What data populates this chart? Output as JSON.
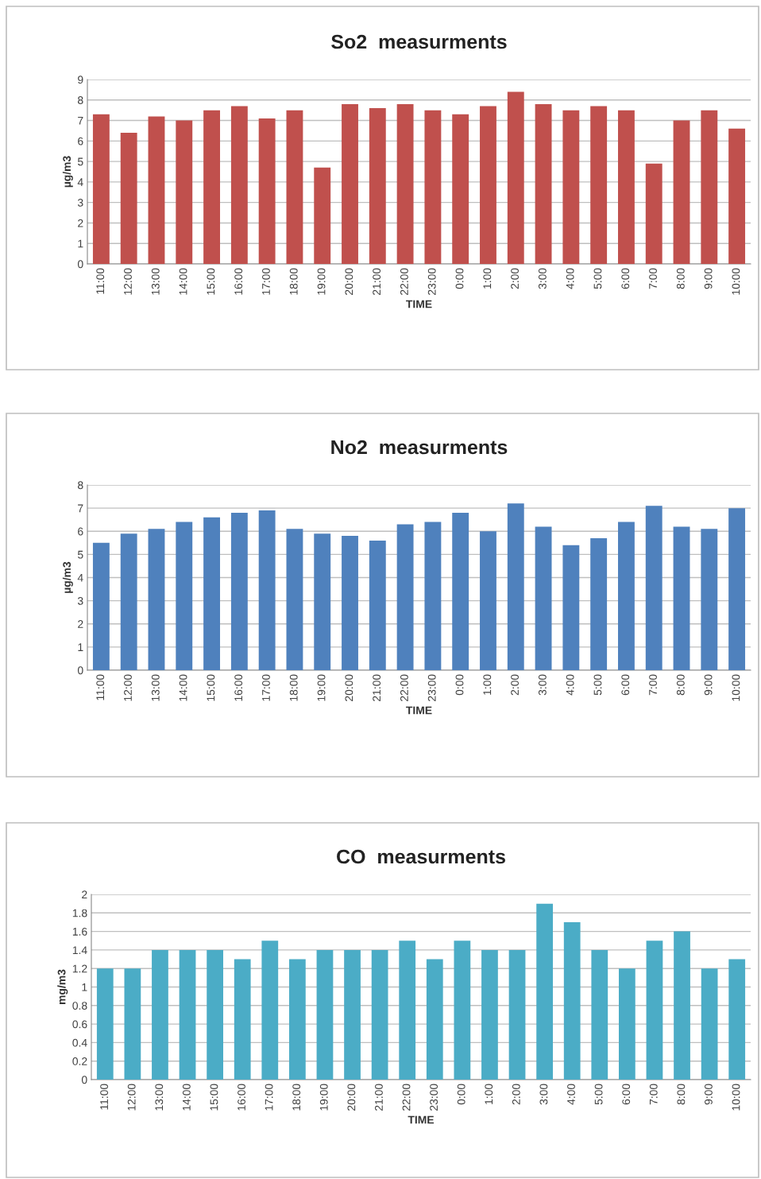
{
  "chart_data": [
    {
      "type": "bar",
      "title": "So2  measurments",
      "xlabel": "TIME",
      "ylabel": "µg/m3",
      "categories": [
        "11:00",
        "12:00",
        "13:00",
        "14:00",
        "15:00",
        "16:00",
        "17:00",
        "18:00",
        "19:00",
        "20:00",
        "21:00",
        "22:00",
        "23:00",
        "0:00",
        "1:00",
        "2:00",
        "3:00",
        "4:00",
        "5:00",
        "6:00",
        "7:00",
        "8:00",
        "9:00",
        "10:00"
      ],
      "values": [
        7.3,
        6.4,
        7.2,
        7.0,
        7.5,
        7.7,
        7.1,
        7.5,
        4.7,
        7.8,
        7.6,
        7.8,
        7.5,
        7.3,
        7.7,
        8.4,
        7.8,
        7.5,
        7.7,
        7.5,
        4.9,
        7.0,
        7.5,
        6.6
      ],
      "color": "#c0504d",
      "ylim": [
        0,
        9
      ],
      "yticks": [
        0,
        1,
        2,
        3,
        4,
        5,
        6,
        7,
        8,
        9
      ],
      "grid": "y",
      "legend": false
    },
    {
      "type": "bar",
      "title": "No2  measurments",
      "xlabel": "TIME",
      "ylabel": "µg/m3",
      "categories": [
        "11:00",
        "12:00",
        "13:00",
        "14:00",
        "15:00",
        "16:00",
        "17:00",
        "18:00",
        "19:00",
        "20:00",
        "21:00",
        "22:00",
        "23:00",
        "0:00",
        "1:00",
        "2:00",
        "3:00",
        "4:00",
        "5:00",
        "6:00",
        "7:00",
        "8:00",
        "9:00",
        "10:00"
      ],
      "values": [
        5.5,
        5.9,
        6.1,
        6.4,
        6.6,
        6.8,
        6.9,
        6.1,
        5.9,
        5.8,
        5.6,
        6.3,
        6.4,
        6.8,
        6.0,
        7.2,
        6.2,
        5.4,
        5.7,
        6.4,
        7.1,
        6.2,
        6.1,
        7.0
      ],
      "color": "#4f81bd",
      "ylim": [
        0,
        8
      ],
      "yticks": [
        0,
        1,
        2,
        3,
        4,
        5,
        6,
        7,
        8
      ],
      "grid": "y",
      "legend": false
    },
    {
      "type": "bar",
      "title": "CO  measurments",
      "xlabel": "TIME",
      "ylabel": "mg/m3",
      "categories": [
        "11:00",
        "12:00",
        "13:00",
        "14:00",
        "15:00",
        "16:00",
        "17:00",
        "18:00",
        "19:00",
        "20:00",
        "21:00",
        "22:00",
        "23:00",
        "0:00",
        "1:00",
        "2:00",
        "3:00",
        "4:00",
        "5:00",
        "6:00",
        "7:00",
        "8:00",
        "9:00",
        "10:00"
      ],
      "values": [
        1.2,
        1.2,
        1.4,
        1.4,
        1.4,
        1.3,
        1.5,
        1.3,
        1.4,
        1.4,
        1.4,
        1.5,
        1.3,
        1.5,
        1.4,
        1.4,
        1.9,
        1.7,
        1.4,
        1.2,
        1.5,
        1.6,
        1.2,
        1.3
      ],
      "color": "#4bacc6",
      "ylim": [
        0,
        2
      ],
      "yticks": [
        0,
        0.2,
        0.4,
        0.6,
        0.8,
        1,
        1.2,
        1.4,
        1.6,
        1.8,
        2
      ],
      "grid": "y",
      "legend": false
    }
  ]
}
